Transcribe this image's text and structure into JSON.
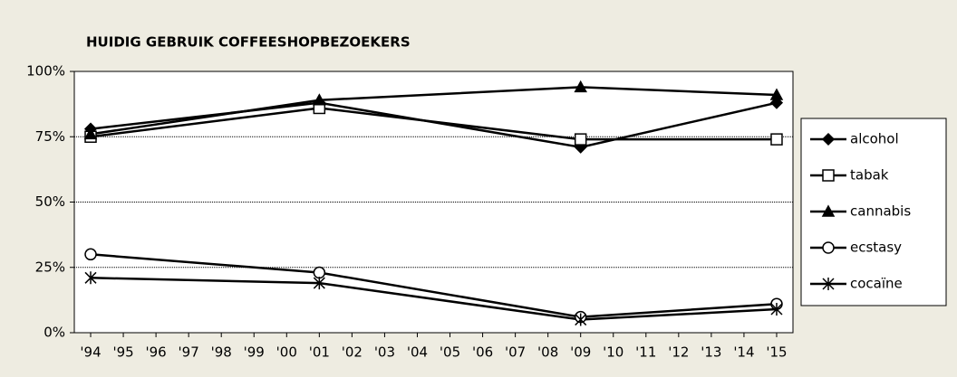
{
  "chart_data": {
    "type": "line",
    "title": "HUIDIG GEBRUIK COFFEESHOPBEZOEKERS",
    "x": [
      1994,
      2001,
      2009,
      2015
    ],
    "xlim": [
      1993.5,
      2015.5
    ],
    "xticks": [
      {
        "value": 1994,
        "label": "'94"
      },
      {
        "value": 1995,
        "label": "'95"
      },
      {
        "value": 1996,
        "label": "'96"
      },
      {
        "value": 1997,
        "label": "'97"
      },
      {
        "value": 1998,
        "label": "'98"
      },
      {
        "value": 1999,
        "label": "'99"
      },
      {
        "value": 2000,
        "label": "'00"
      },
      {
        "value": 2001,
        "label": "'01"
      },
      {
        "value": 2002,
        "label": "'02"
      },
      {
        "value": 2003,
        "label": "'03"
      },
      {
        "value": 2004,
        "label": "'04"
      },
      {
        "value": 2005,
        "label": "'05"
      },
      {
        "value": 2006,
        "label": "'06"
      },
      {
        "value": 2007,
        "label": "'07"
      },
      {
        "value": 2008,
        "label": "'08"
      },
      {
        "value": 2009,
        "label": "'09"
      },
      {
        "value": 2010,
        "label": "'10"
      },
      {
        "value": 2011,
        "label": "'11"
      },
      {
        "value": 2012,
        "label": "'12"
      },
      {
        "value": 2013,
        "label": "'13"
      },
      {
        "value": 2014,
        "label": "'14"
      },
      {
        "value": 2015,
        "label": "'15"
      }
    ],
    "ylim": [
      0,
      100
    ],
    "yticks": [
      {
        "value": 0,
        "label": "0%"
      },
      {
        "value": 25,
        "label": "25%"
      },
      {
        "value": 50,
        "label": "50%"
      },
      {
        "value": 75,
        "label": "75%"
      },
      {
        "value": 100,
        "label": "100%"
      }
    ],
    "grid": true,
    "legend": "right",
    "series": [
      {
        "name": "alcohol",
        "color": "#000000",
        "marker": "diamond",
        "values": [
          78,
          88,
          71,
          88
        ]
      },
      {
        "name": "tabak",
        "color": "#000000",
        "marker": "square-open",
        "values": [
          75,
          86,
          74,
          74
        ]
      },
      {
        "name": "cannabis",
        "color": "#000000",
        "marker": "triangle",
        "values": [
          76,
          89,
          94,
          91
        ]
      },
      {
        "name": "ecstasy",
        "color": "#000000",
        "marker": "circle-open",
        "values": [
          30,
          23,
          6,
          11
        ]
      },
      {
        "name": "cocaïne",
        "color": "#000000",
        "marker": "asterisk",
        "values": [
          21,
          19,
          5,
          9
        ]
      }
    ]
  }
}
